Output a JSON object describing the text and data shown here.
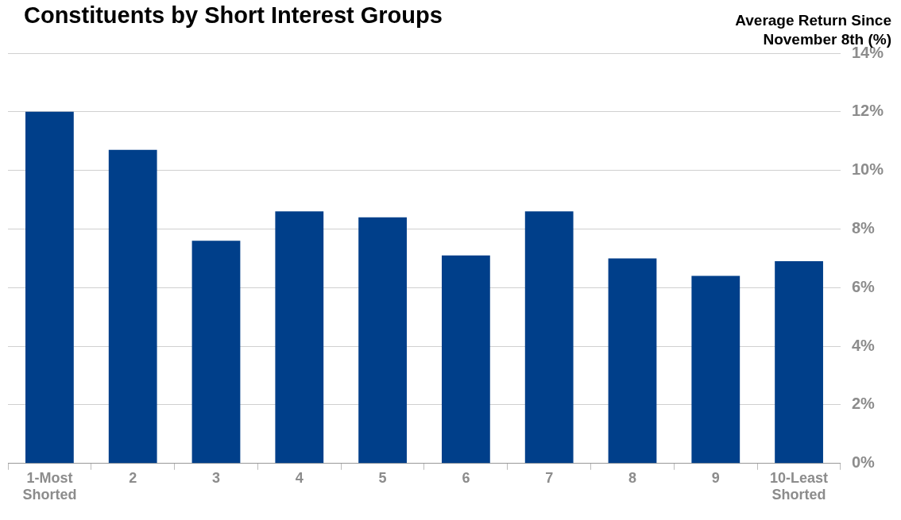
{
  "chart_data": {
    "type": "bar",
    "title": "Constituents by Short Interest Groups",
    "ylabel": "Average Return  Since November 8th (%)",
    "categories": [
      "1-Most Shorted",
      "2",
      "3",
      "4",
      "5",
      "6",
      "7",
      "8",
      "9",
      "10-Least Shorted"
    ],
    "values": [
      12.0,
      10.7,
      7.6,
      8.6,
      8.4,
      7.1,
      8.6,
      7.0,
      6.4,
      6.9
    ],
    "color": "#003f8a",
    "ylim": [
      0,
      14
    ],
    "yticks": [
      {
        "value": 0,
        "label": "0%"
      },
      {
        "value": 2,
        "label": "2%"
      },
      {
        "value": 4,
        "label": "4%"
      },
      {
        "value": 6,
        "label": "6%"
      },
      {
        "value": 8,
        "label": "8%"
      },
      {
        "value": 10,
        "label": "10%"
      },
      {
        "value": 12,
        "label": "12%"
      },
      {
        "value": 14,
        "label": "14%"
      }
    ],
    "grid": "y",
    "legend": false
  }
}
